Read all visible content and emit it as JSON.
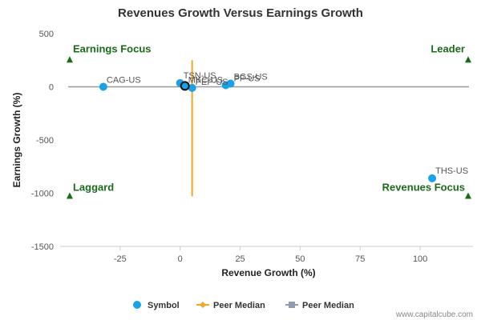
{
  "chart_data": {
    "type": "scatter",
    "title": "Revenues Growth Versus Earnings Growth",
    "xlabel": "Revenue Growth (%)",
    "ylabel": "Earnings Growth (%)",
    "xlim": [
      -50,
      122
    ],
    "ylim": [
      -1500,
      500
    ],
    "xticks": [
      -25,
      0,
      25,
      50,
      75,
      100
    ],
    "yticks": [
      500,
      0,
      -500,
      -1000,
      -1500
    ],
    "grid": false,
    "points": [
      {
        "label": "CAG-US",
        "x": -32,
        "y": 0
      },
      {
        "label": "TSN-US",
        "x": 0,
        "y": 35
      },
      {
        "label": "MKC-US",
        "x": 2,
        "y": 8
      },
      {
        "label": "PEP-US",
        "x": 5,
        "y": -10
      },
      {
        "label": "PF-US",
        "x": 19,
        "y": 15
      },
      {
        "label": "BGS-US",
        "x": 21,
        "y": 30
      },
      {
        "label": "THS-US",
        "x": 105,
        "y": -860
      }
    ],
    "highlight": {
      "x": 2,
      "y": 8
    },
    "peer_median_x": 5,
    "peer_median_x_span": [
      -1030,
      250
    ],
    "peer_median_y": 0,
    "quadrant_labels": [
      {
        "text": "Earnings Focus",
        "corner": "top-left",
        "x": -46,
        "y": 250
      },
      {
        "text": "Leader",
        "corner": "top-right",
        "x": 120,
        "y": 250
      },
      {
        "text": "Laggard",
        "corner": "bottom-left",
        "x": -46,
        "y": -1030
      },
      {
        "text": "Revenues Focus",
        "corner": "bottom-right",
        "x": 120,
        "y": -1030
      }
    ],
    "legend": [
      {
        "label": "Symbol",
        "color": "#1aa1e6",
        "marker": "circle"
      },
      {
        "label": "Peer Median",
        "color": "#f5a623",
        "marker": "diamond-line"
      },
      {
        "label": "Peer Median",
        "color": "#8f9bb0",
        "marker": "square-line"
      }
    ],
    "legend_position": "bottom",
    "colors": {
      "point": "#1aa1e6",
      "median_x": "#f5a623",
      "median_y": "#999999",
      "quadrant": "#1a6b1a"
    }
  },
  "credit": "www.capitalcube.com"
}
